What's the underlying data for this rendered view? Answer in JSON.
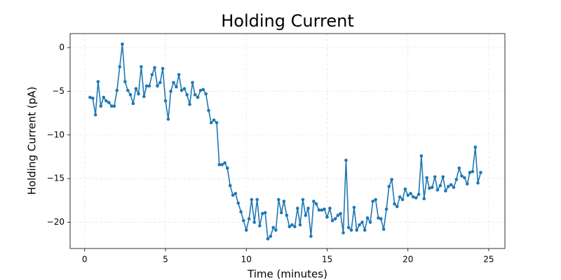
{
  "chart_data": {
    "type": "line",
    "title": "Holding Current",
    "x_label": "Time (minutes)",
    "y_label": "Holding Current (pA)",
    "color": "#1f77b4",
    "grid": true,
    "x": [
      0.33,
      0.5,
      0.67,
      0.83,
      1,
      1.17,
      1.33,
      1.5,
      1.67,
      1.83,
      2,
      2.17,
      2.33,
      2.5,
      2.67,
      2.83,
      3,
      3.17,
      3.33,
      3.5,
      3.67,
      3.83,
      4,
      4.17,
      4.33,
      4.5,
      4.67,
      4.83,
      5,
      5.17,
      5.33,
      5.5,
      5.67,
      5.83,
      6,
      6.17,
      6.33,
      6.5,
      6.67,
      6.83,
      7,
      7.17,
      7.33,
      7.5,
      7.67,
      7.83,
      8,
      8.17,
      8.33,
      8.5,
      8.67,
      8.83,
      9,
      9.17,
      9.33,
      9.5,
      9.67,
      9.83,
      10,
      10.17,
      10.33,
      10.5,
      10.67,
      10.83,
      11,
      11.17,
      11.33,
      11.5,
      11.67,
      11.83,
      12,
      12.17,
      12.33,
      12.5,
      12.67,
      12.83,
      13,
      13.17,
      13.33,
      13.5,
      13.67,
      13.83,
      14,
      14.17,
      14.33,
      14.5,
      14.67,
      14.83,
      15,
      15.17,
      15.33,
      15.5,
      15.67,
      15.83,
      16,
      16.17,
      16.33,
      16.5,
      16.67,
      16.83,
      17,
      17.17,
      17.33,
      17.5,
      17.67,
      17.83,
      18,
      18.17,
      18.33,
      18.5,
      18.67,
      18.83,
      19,
      19.17,
      19.33,
      19.5,
      19.67,
      19.83,
      20,
      20.17,
      20.33,
      20.5,
      20.67,
      20.83,
      21,
      21.17,
      21.33,
      21.5,
      21.67,
      21.83,
      22,
      22.17,
      22.33,
      22.5,
      22.67,
      22.83,
      23,
      23.17,
      23.33,
      23.5,
      23.67,
      23.83,
      24,
      24.17,
      24.33,
      24.5
    ],
    "values": [
      -5.7,
      -5.8,
      -7.7,
      -3.9,
      -6.7,
      -5.7,
      -6.1,
      -6.3,
      -6.7,
      -6.7,
      -4.9,
      -2.2,
      0.4,
      -3.9,
      -4.9,
      -5.4,
      -6.4,
      -4.7,
      -5.3,
      -2.2,
      -5.6,
      -4.4,
      -4.4,
      -3.1,
      -2.3,
      -4.4,
      -4.0,
      -2.4,
      -6.1,
      -8.2,
      -5.0,
      -4.0,
      -4.5,
      -3.1,
      -4.9,
      -4.7,
      -5.4,
      -6.5,
      -4.0,
      -5.4,
      -5.7,
      -4.9,
      -4.8,
      -5.3,
      -7.2,
      -8.6,
      -8.3,
      -8.6,
      -13.4,
      -13.4,
      -13.2,
      -13.8,
      -15.8,
      -16.9,
      -16.7,
      -17.8,
      -18.8,
      -19.8,
      -20.9,
      -19.6,
      -17.4,
      -20.0,
      -17.4,
      -20.4,
      -19.0,
      -18.9,
      -21.9,
      -21.6,
      -20.6,
      -20.9,
      -17.4,
      -18.9,
      -17.6,
      -19.2,
      -20.5,
      -20.3,
      -20.5,
      -18.4,
      -20.3,
      -17.4,
      -19.2,
      -18.4,
      -21.6,
      -17.6,
      -17.9,
      -18.6,
      -18.6,
      -18.5,
      -19.4,
      -18.4,
      -19.8,
      -19.6,
      -19.2,
      -19.0,
      -21.2,
      -12.9,
      -20.6,
      -20.9,
      -18.3,
      -20.9,
      -20.3,
      -20.0,
      -20.9,
      -19.5,
      -20.0,
      -17.6,
      -17.4,
      -19.5,
      -19.6,
      -20.8,
      -18.5,
      -15.9,
      -15.1,
      -17.9,
      -18.2,
      -17.1,
      -17.4,
      -16.2,
      -16.9,
      -16.7,
      -17.1,
      -17.2,
      -16.8,
      -12.4,
      -17.3,
      -14.9,
      -16.1,
      -16.0,
      -14.8,
      -16.3,
      -15.8,
      -14.8,
      -16.4,
      -15.9,
      -15.7,
      -16.0,
      -15.1,
      -13.8,
      -14.7,
      -14.9,
      -15.6,
      -14.3,
      -14.2,
      -11.4,
      -15.5,
      -14.3
    ],
    "xlim": [
      -0.9,
      26.0
    ],
    "ylim": [
      -23.0,
      1.6
    ],
    "xticks": [
      0,
      5,
      10,
      15,
      20,
      25
    ],
    "yticks": [
      {
        "value": -20,
        "label": "−20"
      },
      {
        "value": -15,
        "label": "−15"
      },
      {
        "value": -10,
        "label": "−10"
      },
      {
        "value": -5,
        "label": "−5"
      },
      0
    ]
  }
}
